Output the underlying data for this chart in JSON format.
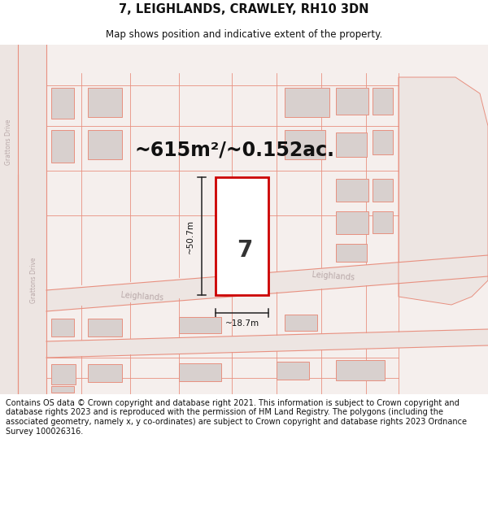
{
  "title": "7, LEIGHLANDS, CRAWLEY, RH10 3DN",
  "subtitle": "Map shows position and indicative extent of the property.",
  "area_label": "~615m²/~0.152ac.",
  "width_label": "~18.7m",
  "height_label": "~50.7m",
  "plot_number": "7",
  "street_left": "Leighlands",
  "street_right": "Leighlands",
  "vert_road": "Grattons Drive",
  "vert_road2": "Grattons Drive",
  "footer": "Contains OS data © Crown copyright and database right 2021. This information is subject to Crown copyright and database rights 2023 and is reproduced with the permission of HM Land Registry. The polygons (including the associated geometry, namely x, y co-ordinates) are subject to Crown copyright and database rights 2023 Ordnance Survey 100026316.",
  "map_bg": "#f5efed",
  "building_fill": "#d8d0ce",
  "building_edge": "#e89080",
  "road_line": "#e89080",
  "highlight_fill": "#ffffff",
  "highlight_edge": "#cc0000",
  "dim_color": "#222222",
  "street_color": "#b8a8a8",
  "title_fs": 10.5,
  "subtitle_fs": 8.5,
  "area_fs": 17,
  "footer_fs": 7.0
}
